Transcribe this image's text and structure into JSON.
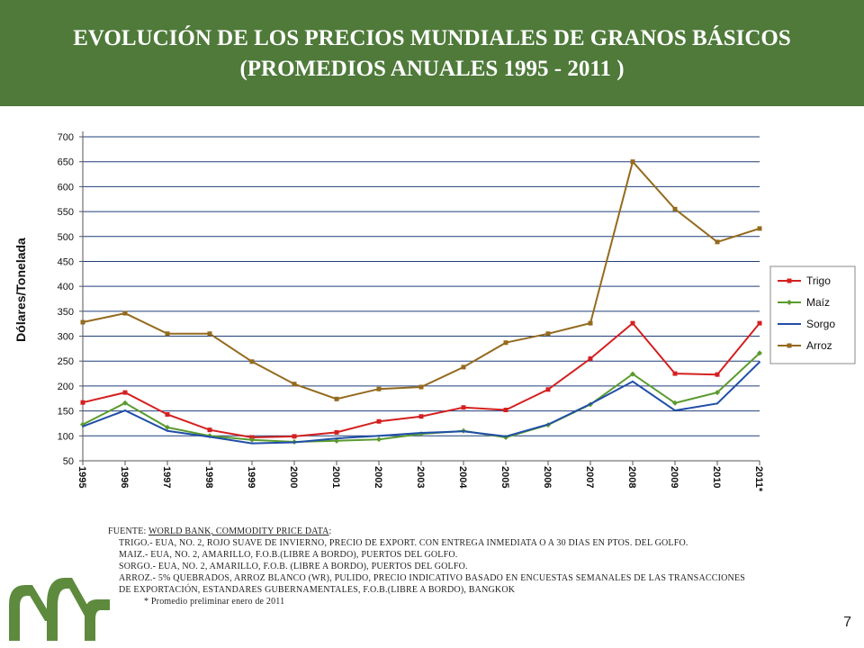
{
  "title": {
    "line1": "EVOLUCIÓN DE LOS PRECIOS MUNDIALES DE GRANOS BÁSICOS",
    "line2": "(PROMEDIOS ANUALES 1995  - 2011 )"
  },
  "chart_data": {
    "type": "line",
    "ylabel": "Dólares/Tonelada",
    "xlabel": "",
    "ylim": [
      50,
      700
    ],
    "yticks": [
      50,
      100,
      150,
      200,
      250,
      300,
      350,
      400,
      450,
      500,
      550,
      600,
      650,
      700
    ],
    "grid": true,
    "legend_position": "right",
    "x": [
      "1995",
      "1996",
      "1997",
      "1998",
      "1999",
      "2000",
      "2001",
      "2002",
      "2003",
      "2004",
      "2005",
      "2006",
      "2007",
      "2008",
      "2009",
      "2010",
      "2011*"
    ],
    "series": [
      {
        "name": "Trigo",
        "color": "#d42020",
        "marker": "square",
        "values": [
          167,
          187,
          143,
          112,
          97,
          99,
          107,
          129,
          139,
          157,
          152,
          193,
          255,
          326,
          225,
          223,
          326
        ]
      },
      {
        "name": "Maíz",
        "color": "#5b9a2e",
        "marker": "diamond",
        "values": [
          123,
          166,
          117,
          100,
          92,
          88,
          90,
          93,
          104,
          110,
          97,
          122,
          163,
          224,
          166,
          187,
          266
        ]
      },
      {
        "name": "Sorgo",
        "color": "#1f4ea8",
        "marker": "none",
        "values": [
          119,
          151,
          110,
          98,
          85,
          87,
          95,
          100,
          106,
          109,
          99,
          123,
          164,
          209,
          151,
          165,
          248
        ]
      },
      {
        "name": "Arroz",
        "color": "#946a1e",
        "marker": "square",
        "values": [
          328,
          346,
          305,
          305,
          249,
          204,
          174,
          194,
          198,
          238,
          287,
          305,
          326,
          650,
          555,
          489,
          516
        ]
      }
    ]
  },
  "notes": {
    "source_label": "FUENTE: ",
    "source_name": "WORLD BANK, COMMODITY PRICE DATA",
    "source_suffix": ":",
    "trigo": "TRIGO.-  EUA, NO. 2, ROJO SUAVE DE INVIERNO,  PRECIO DE EXPORT. CON ENTREGA INMEDIATA O A 30 DIAS EN PTOS. DEL GOLFO.",
    "maiz": "MAIZ.-    EUA, NO. 2, AMARILLO, F.O.B.(LIBRE A BORDO), PUERTOS DEL GOLFO.",
    "sorgo": "SORGO.- EUA, NO. 2, AMARILLO, F.O.B. (LIBRE A BORDO), PUERTOS DEL GOLFO.",
    "arroz1": "ARROZ.- 5% QUEBRADOS, ARROZ BLANCO (WR),  PULIDO, PRECIO INDICATIVO BASADO EN  ENCUESTAS SEMANALES DE LAS TRANSACCIONES",
    "arroz2": "DE EXPORTACIÓN, ESTANDARES GUBERNAMENTALES, F.O.B.(LIBRE A BORDO),  BANGKOK",
    "prelim": "* Promedio preliminar enero de 2011"
  },
  "page_number": "7",
  "colors": {
    "header_bg": "#4f7a3a",
    "logo": "#5e8a3e"
  }
}
